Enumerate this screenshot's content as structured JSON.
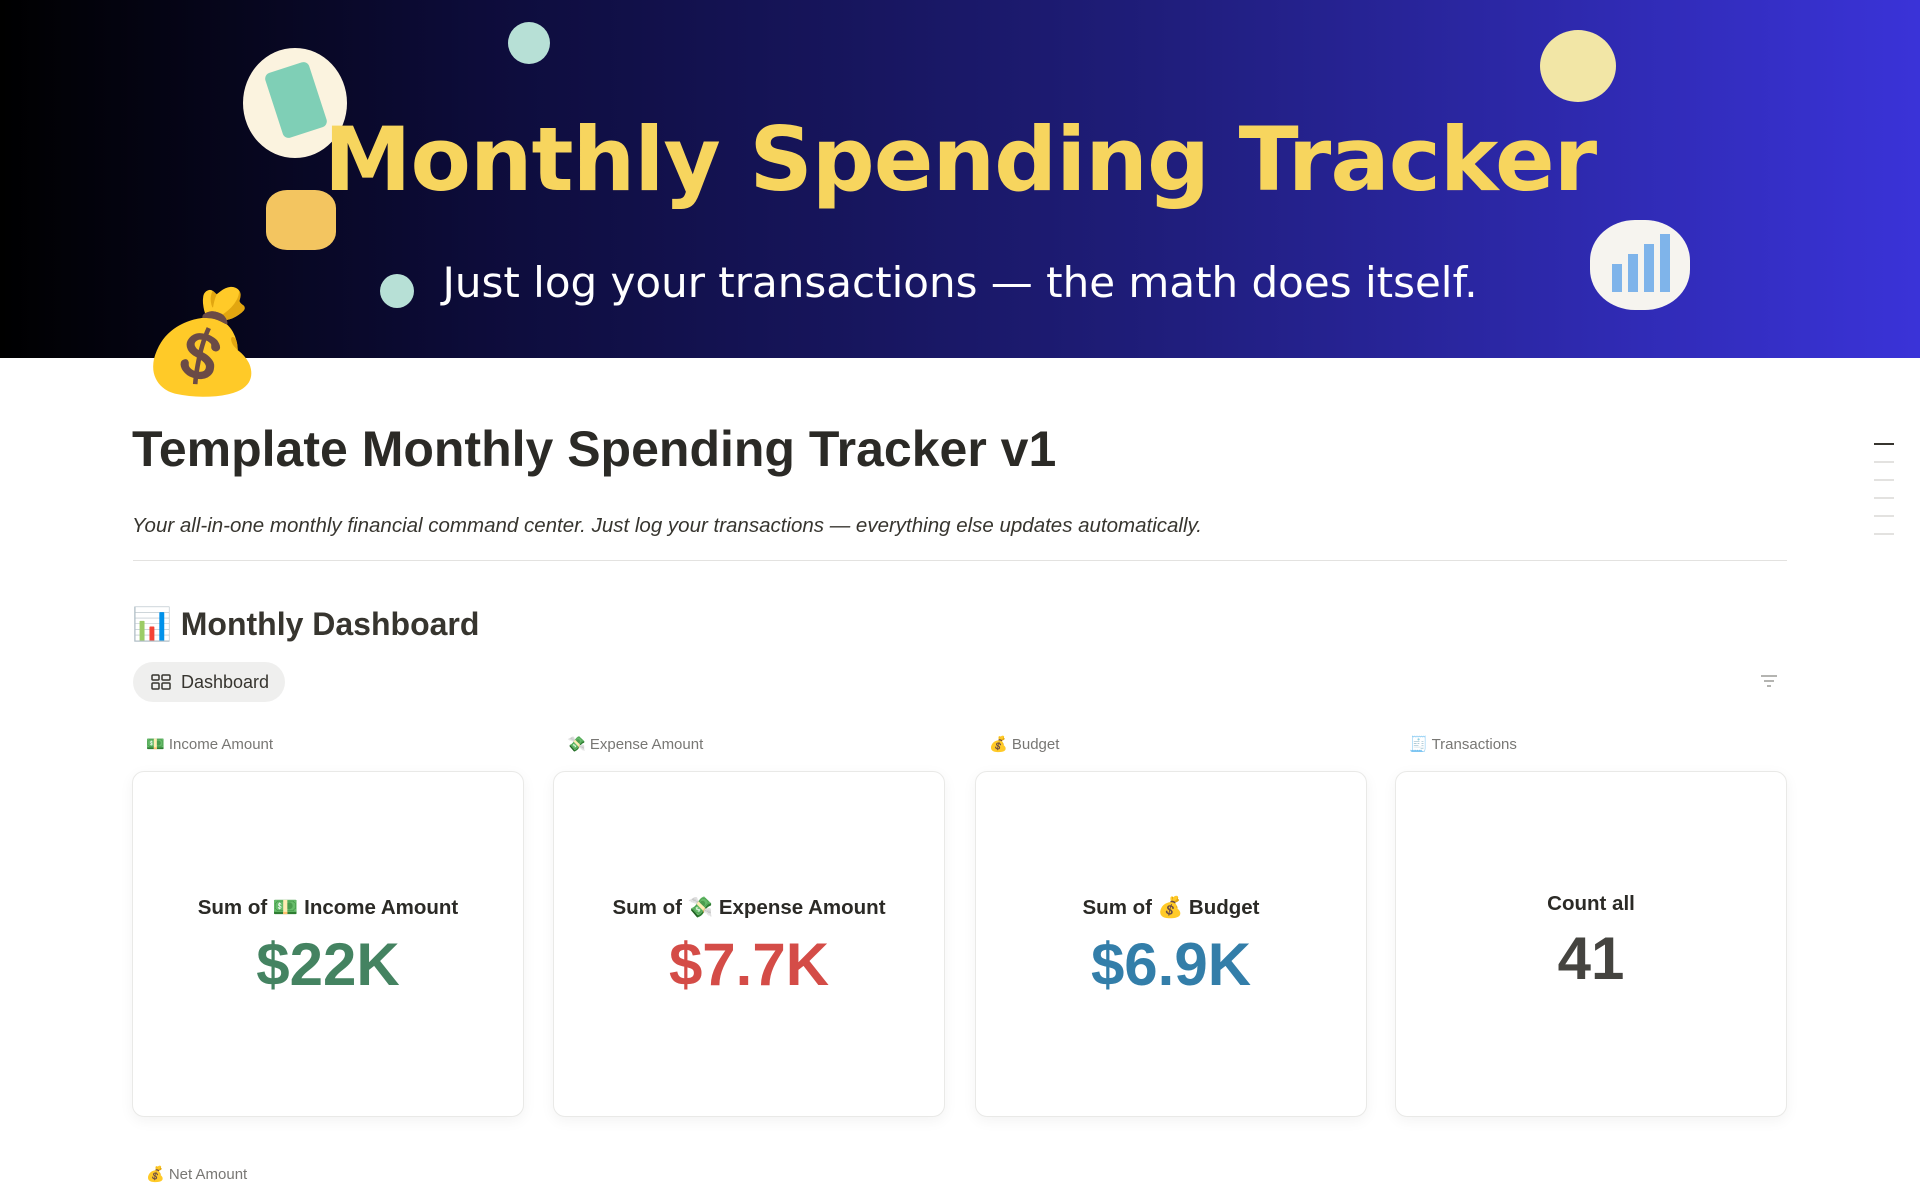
{
  "banner": {
    "title": "Monthly Spending Tracker",
    "subtitle": "Just log your transactions — the math does itself."
  },
  "page": {
    "icon": "💰",
    "title": "Template Monthly Spending Tracker v1",
    "description": "Your all-in-one monthly financial command center. Just log your transactions — everything else updates automatically."
  },
  "section": {
    "heading": "📊 Monthly Dashboard",
    "tab": "Dashboard"
  },
  "cards": [
    {
      "label": "💵 Income Amount",
      "caption": "Sum of 💵 Income Amount",
      "value": "$22K"
    },
    {
      "label": "💸 Expense Amount",
      "caption": "Sum of 💸 Expense Amount",
      "value": "$7.7K"
    },
    {
      "label": "💰 Budget",
      "caption": "Sum of 💰 Budget",
      "value": "$6.9K"
    },
    {
      "label": "🧾 Transactions",
      "caption": "Count all",
      "value": "41"
    }
  ],
  "next_label": "💰 Net Amount"
}
